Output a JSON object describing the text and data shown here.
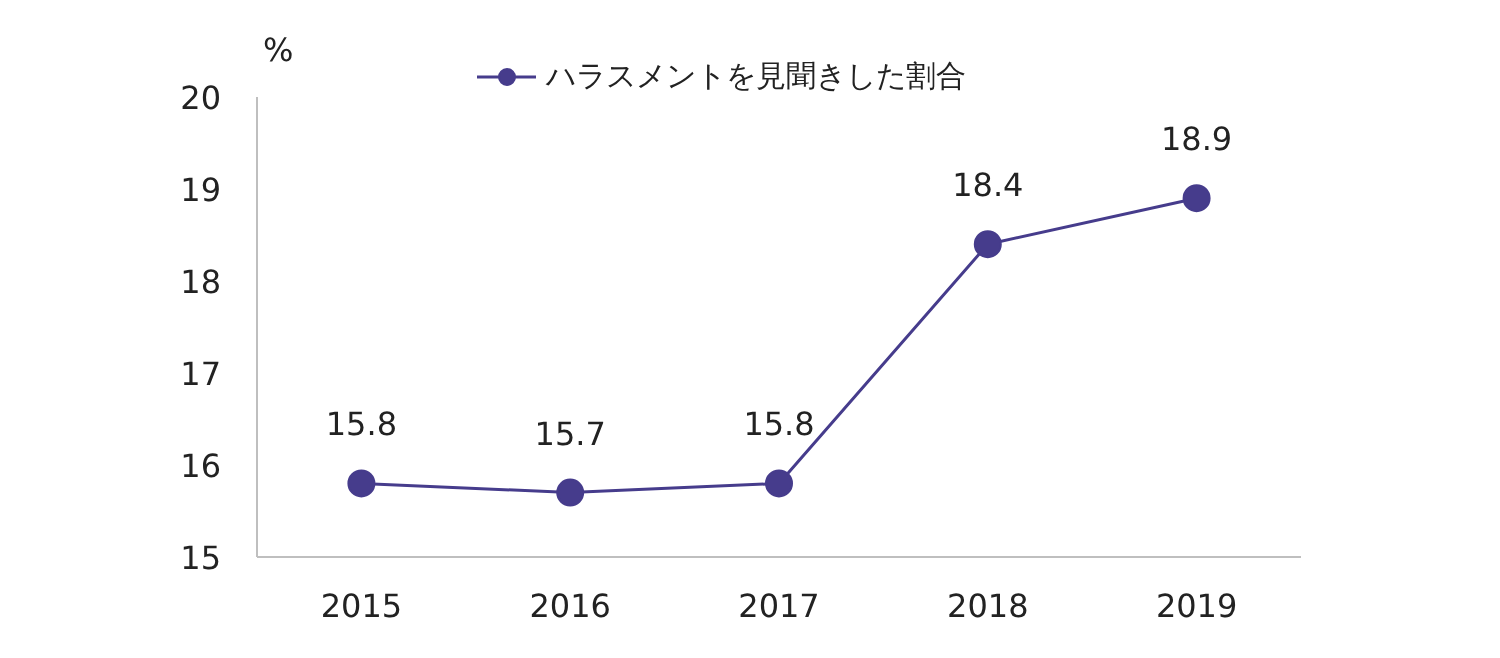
{
  "chart_data": {
    "type": "line",
    "ylabel": "%",
    "categories": [
      "2015",
      "2016",
      "2017",
      "2018",
      "2019"
    ],
    "series": [
      {
        "name": "ハラスメントを見聞きした割合",
        "color": "#463c8c",
        "values": [
          15.8,
          15.7,
          15.8,
          18.4,
          18.9
        ]
      }
    ],
    "ylim": [
      15,
      20
    ],
    "yticks": [
      15,
      16,
      17,
      18,
      19,
      20
    ],
    "grid": false,
    "legend": "top",
    "marker": "circle",
    "line_style": "solid",
    "data_labels": true
  }
}
